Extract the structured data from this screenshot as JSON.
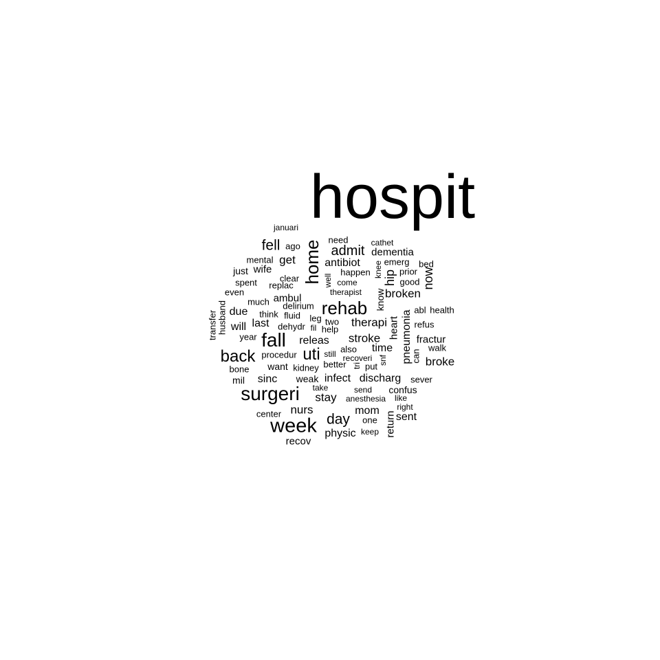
{
  "words": [
    {
      "text": "hospit"
    },
    {
      "text": "home"
    },
    {
      "text": "rehab"
    },
    {
      "text": "surgeri"
    },
    {
      "text": "fall"
    },
    {
      "text": "week"
    },
    {
      "text": "back"
    },
    {
      "text": "uti"
    },
    {
      "text": "fell"
    },
    {
      "text": "admit"
    },
    {
      "text": "day"
    },
    {
      "text": "therapi"
    },
    {
      "text": "stroke"
    },
    {
      "text": "broken"
    },
    {
      "text": "antibiot"
    },
    {
      "text": "dementia"
    },
    {
      "text": "releas"
    },
    {
      "text": "stay"
    },
    {
      "text": "nurs"
    },
    {
      "text": "infect"
    },
    {
      "text": "discharg"
    },
    {
      "text": "broke"
    },
    {
      "text": "sinc"
    },
    {
      "text": "hip"
    },
    {
      "text": "now"
    },
    {
      "text": "pneumonia"
    },
    {
      "text": "heart"
    },
    {
      "text": "return"
    },
    {
      "text": "sent"
    },
    {
      "text": "mom"
    },
    {
      "text": "physic"
    },
    {
      "text": "get"
    },
    {
      "text": "due"
    },
    {
      "text": "will"
    },
    {
      "text": "last"
    },
    {
      "text": "wife"
    },
    {
      "text": "time"
    },
    {
      "text": "fractur"
    },
    {
      "text": "ambul"
    },
    {
      "text": "know"
    },
    {
      "text": "happen"
    },
    {
      "text": "need"
    },
    {
      "text": "just"
    },
    {
      "text": "mental"
    },
    {
      "text": "recov"
    },
    {
      "text": "confus"
    },
    {
      "text": "want"
    },
    {
      "text": "mil"
    },
    {
      "text": "weak"
    },
    {
      "text": "procedur"
    },
    {
      "text": "dehydr"
    },
    {
      "text": "two"
    },
    {
      "text": "sever"
    },
    {
      "text": "emerg"
    },
    {
      "text": "prior"
    },
    {
      "text": "can"
    },
    {
      "text": "ago"
    },
    {
      "text": "replac"
    },
    {
      "text": "clear"
    },
    {
      "text": "even"
    },
    {
      "text": "transfer"
    },
    {
      "text": "husband"
    },
    {
      "text": "think"
    },
    {
      "text": "spent"
    },
    {
      "text": "much"
    },
    {
      "text": "bone"
    },
    {
      "text": "center"
    },
    {
      "text": "anesthesia"
    },
    {
      "text": "one"
    },
    {
      "text": "keep"
    },
    {
      "text": "refus"
    },
    {
      "text": "walk"
    },
    {
      "text": "snf"
    },
    {
      "text": "knee"
    },
    {
      "text": "well"
    },
    {
      "text": "bed"
    },
    {
      "text": "good"
    },
    {
      "text": "health"
    },
    {
      "text": "abl"
    },
    {
      "text": "delirium"
    },
    {
      "text": "fluid"
    },
    {
      "text": "leg"
    },
    {
      "text": "help"
    },
    {
      "text": "fil"
    },
    {
      "text": "year"
    },
    {
      "text": "also"
    },
    {
      "text": "still"
    },
    {
      "text": "recoveri"
    },
    {
      "text": "kidney"
    },
    {
      "text": "better"
    },
    {
      "text": "put"
    },
    {
      "text": "tri"
    },
    {
      "text": "take"
    },
    {
      "text": "send"
    },
    {
      "text": "like"
    },
    {
      "text": "right"
    },
    {
      "text": "cathet"
    },
    {
      "text": "come"
    },
    {
      "text": "therapist"
    },
    {
      "text": "januari"
    }
  ]
}
